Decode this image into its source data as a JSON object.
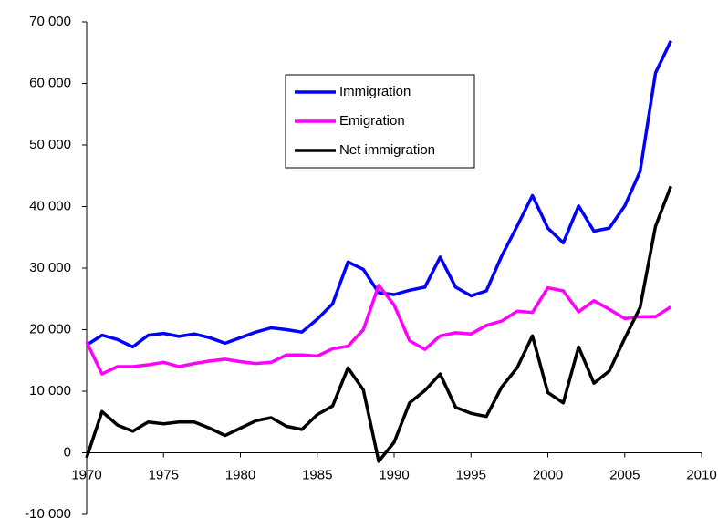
{
  "chart_data": {
    "type": "line",
    "x": [
      1970,
      1971,
      1972,
      1973,
      1974,
      1975,
      1976,
      1977,
      1978,
      1979,
      1980,
      1981,
      1982,
      1983,
      1984,
      1985,
      1986,
      1987,
      1988,
      1989,
      1990,
      1991,
      1992,
      1993,
      1994,
      1995,
      1996,
      1997,
      1998,
      1999,
      2000,
      2001,
      2002,
      2003,
      2004,
      2005,
      2006,
      2007,
      2008
    ],
    "series": [
      {
        "name": "Immigration",
        "color": "#0000ff",
        "values": [
          17500,
          19100,
          18400,
          17200,
          19100,
          19400,
          18900,
          19300,
          18700,
          17800,
          18700,
          19600,
          20300,
          20000,
          19600,
          21700,
          24200,
          31000,
          29800,
          26000,
          25700,
          26400,
          26900,
          31800,
          26900,
          25500,
          26300,
          32000,
          36800,
          41800,
          36500,
          34100,
          40100,
          36000,
          36500,
          40100,
          45700,
          61700,
          66900
        ]
      },
      {
        "name": "Emigration",
        "color": "#ff00ff",
        "values": [
          18000,
          12800,
          14000,
          14000,
          14300,
          14700,
          14000,
          14500,
          14900,
          15200,
          14800,
          14500,
          14700,
          15900,
          15900,
          15700,
          16900,
          17300,
          20000,
          27200,
          24000,
          18200,
          16800,
          19000,
          19500,
          19300,
          20700,
          21400,
          23000,
          22800,
          26800,
          26300,
          22900,
          24700,
          23300,
          21800,
          22100,
          22100,
          23700
        ]
      },
      {
        "name": "Net immigration",
        "color": "#000000",
        "values": [
          -800,
          6700,
          4500,
          3500,
          5000,
          4700,
          5000,
          5000,
          4000,
          2800,
          4000,
          5200,
          5700,
          4300,
          3800,
          6200,
          7600,
          13800,
          10200,
          -1400,
          1700,
          8100,
          10100,
          12800,
          7400,
          6400,
          5900,
          10700,
          13800,
          19000,
          9800,
          8100,
          17200,
          11300,
          13300,
          18600,
          23600,
          36800,
          43300
        ]
      }
    ],
    "xlim": [
      1970,
      2010
    ],
    "xticks": [
      1970,
      1975,
      1980,
      1985,
      1990,
      1995,
      2000,
      2005,
      2010
    ],
    "ylim": [
      -10000,
      70000
    ],
    "yticks": [
      {
        "value": -10000,
        "label": "-10 000"
      },
      0,
      {
        "value": 10000,
        "label": "10 000"
      },
      {
        "value": 20000,
        "label": "20 000"
      },
      {
        "value": 30000,
        "label": "30 000"
      },
      {
        "value": 40000,
        "label": "40 000"
      },
      {
        "value": 50000,
        "label": "50 000"
      },
      {
        "value": 60000,
        "label": "60 000"
      },
      {
        "value": 70000,
        "label": "70 000"
      }
    ],
    "grid": false,
    "legend": "top-center"
  }
}
